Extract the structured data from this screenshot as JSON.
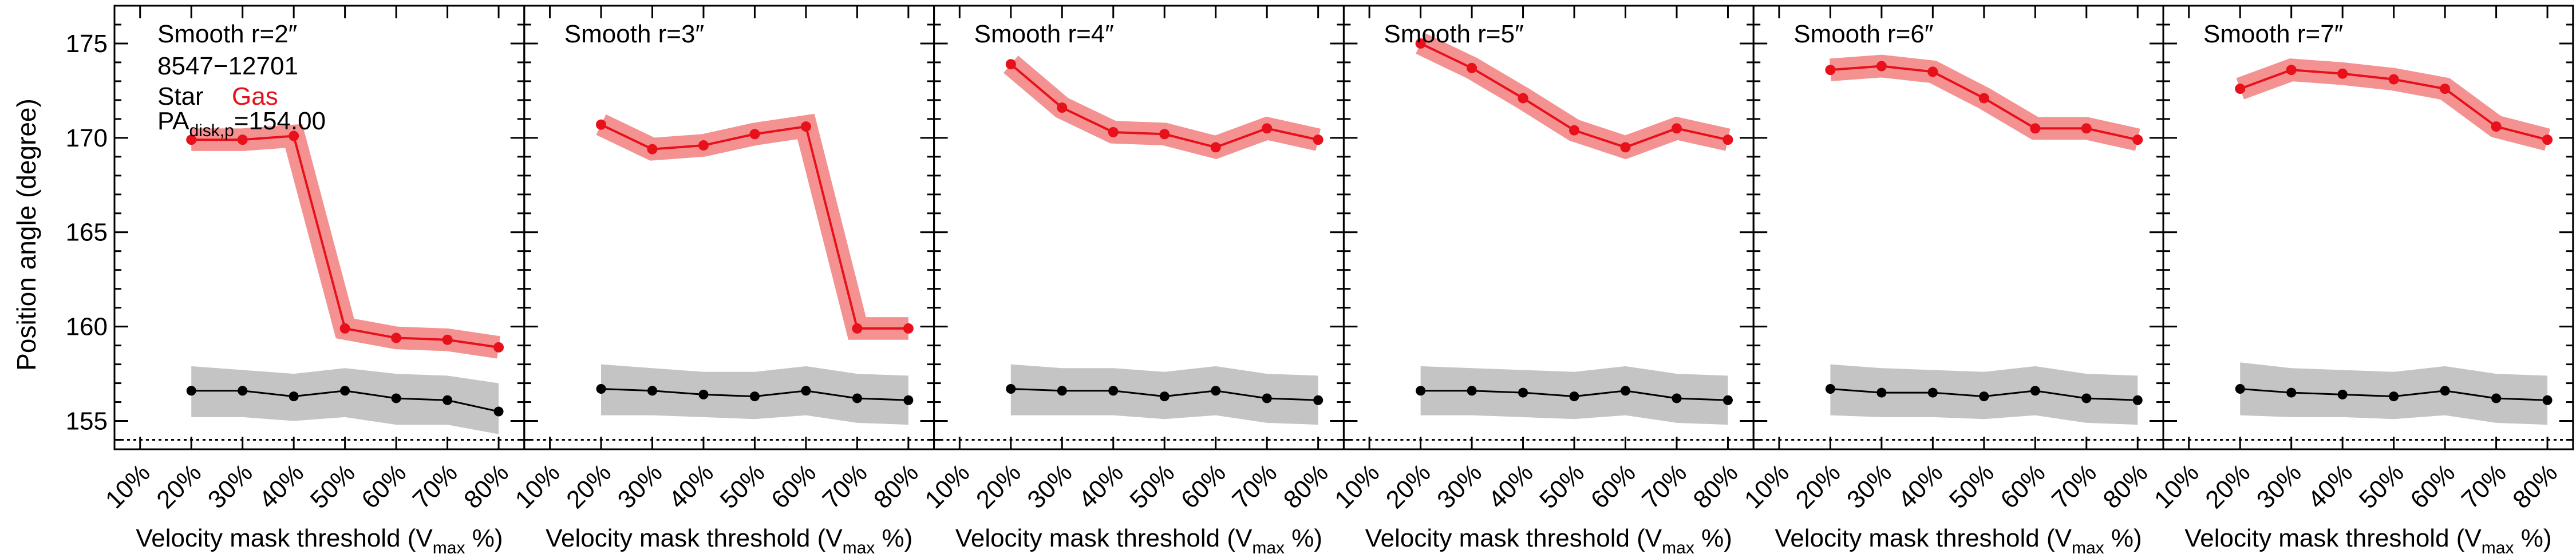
{
  "figure": {
    "ylabel": "Position angle (degree)",
    "xlabel_main": "Velocity mask threshold (V",
    "xlabel_sub": "max",
    "xlabel_tail": " %)",
    "legend": {
      "galaxy_id": "8547−12701",
      "star_label": "Star",
      "gas_label": "Gas",
      "pa_main": "PA",
      "pa_sub": "disk,p",
      "pa_value": "=154.00"
    }
  },
  "chart_data": {
    "type": "line",
    "x": [
      10,
      20,
      30,
      40,
      50,
      60,
      70,
      80
    ],
    "xticklabels": [
      "10%",
      "20%",
      "30%",
      "40%",
      "50%",
      "60%",
      "70%",
      "80%"
    ],
    "xlim": [
      5,
      85
    ],
    "ylim": [
      153.5,
      177
    ],
    "yticks": [
      155,
      160,
      165,
      170,
      175
    ],
    "reference_line": 154.0,
    "colors": {
      "gas": "#e8101a",
      "gas_band": "#f27f7f",
      "star": "#000000",
      "star_band": "#c4c4c4"
    },
    "panels": [
      {
        "title": "Smooth r=2″",
        "gas": {
          "x": [
            20,
            30,
            40,
            50,
            60,
            70,
            80
          ],
          "y": [
            169.9,
            169.9,
            170.1,
            159.9,
            159.4,
            159.3,
            158.9
          ],
          "err": 0.6
        },
        "star": {
          "x": [
            20,
            30,
            40,
            50,
            60,
            70,
            80
          ],
          "y": [
            156.6,
            156.6,
            156.3,
            156.6,
            156.2,
            156.1,
            155.5
          ],
          "upper": [
            157.9,
            157.7,
            157.5,
            157.8,
            157.5,
            157.4,
            157.0
          ],
          "lower": [
            155.2,
            155.2,
            155.0,
            155.2,
            154.8,
            154.8,
            154.3
          ]
        }
      },
      {
        "title": "Smooth r=3″",
        "gas": {
          "x": [
            20,
            30,
            40,
            50,
            60,
            70,
            80
          ],
          "y": [
            170.7,
            169.4,
            169.6,
            170.2,
            170.6,
            159.9,
            159.9
          ],
          "err": 0.6
        },
        "star": {
          "x": [
            20,
            30,
            40,
            50,
            60,
            70,
            80
          ],
          "y": [
            156.7,
            156.6,
            156.4,
            156.3,
            156.6,
            156.2,
            156.1
          ],
          "upper": [
            158.0,
            157.8,
            157.6,
            157.6,
            157.9,
            157.5,
            157.4
          ],
          "lower": [
            155.3,
            155.3,
            155.2,
            155.1,
            155.3,
            154.9,
            154.8
          ]
        }
      },
      {
        "title": "Smooth r=4″",
        "gas": {
          "x": [
            20,
            30,
            40,
            50,
            60,
            70,
            80
          ],
          "y": [
            173.9,
            171.6,
            170.3,
            170.2,
            169.5,
            170.5,
            169.9
          ],
          "err": 0.6
        },
        "star": {
          "x": [
            20,
            30,
            40,
            50,
            60,
            70,
            80
          ],
          "y": [
            156.7,
            156.6,
            156.6,
            156.3,
            156.6,
            156.2,
            156.1
          ],
          "upper": [
            158.0,
            157.8,
            157.8,
            157.6,
            157.9,
            157.5,
            157.4
          ],
          "lower": [
            155.3,
            155.3,
            155.3,
            155.1,
            155.3,
            154.9,
            154.8
          ]
        }
      },
      {
        "title": "Smooth r=5″",
        "gas": {
          "x": [
            20,
            30,
            40,
            50,
            60,
            70,
            80
          ],
          "y": [
            175.0,
            173.7,
            172.1,
            170.4,
            169.5,
            170.5,
            169.9
          ],
          "err": 0.6
        },
        "star": {
          "x": [
            20,
            30,
            40,
            50,
            60,
            70,
            80
          ],
          "y": [
            156.6,
            156.6,
            156.5,
            156.3,
            156.6,
            156.2,
            156.1
          ],
          "upper": [
            157.9,
            157.8,
            157.7,
            157.6,
            157.9,
            157.5,
            157.4
          ],
          "lower": [
            155.3,
            155.3,
            155.2,
            155.1,
            155.3,
            154.9,
            154.8
          ]
        }
      },
      {
        "title": "Smooth r=6″",
        "gas": {
          "x": [
            20,
            30,
            40,
            50,
            60,
            70,
            80
          ],
          "y": [
            173.6,
            173.8,
            173.5,
            172.1,
            170.5,
            170.5,
            169.9
          ],
          "err": 0.6
        },
        "star": {
          "x": [
            20,
            30,
            40,
            50,
            60,
            70,
            80
          ],
          "y": [
            156.7,
            156.5,
            156.5,
            156.3,
            156.6,
            156.2,
            156.1
          ],
          "upper": [
            158.0,
            157.8,
            157.7,
            157.6,
            157.9,
            157.5,
            157.4
          ],
          "lower": [
            155.3,
            155.2,
            155.2,
            155.1,
            155.3,
            154.9,
            154.8
          ]
        }
      },
      {
        "title": "Smooth r=7″",
        "gas": {
          "x": [
            20,
            30,
            40,
            50,
            60,
            70,
            80
          ],
          "y": [
            172.6,
            173.6,
            173.4,
            173.1,
            172.6,
            170.6,
            169.9
          ],
          "err": 0.6
        },
        "star": {
          "x": [
            20,
            30,
            40,
            50,
            60,
            70,
            80
          ],
          "y": [
            156.7,
            156.5,
            156.4,
            156.3,
            156.6,
            156.2,
            156.1
          ],
          "upper": [
            158.1,
            157.8,
            157.7,
            157.6,
            157.9,
            157.5,
            157.4
          ],
          "lower": [
            155.3,
            155.2,
            155.2,
            155.1,
            155.3,
            154.9,
            154.8
          ]
        }
      }
    ]
  }
}
